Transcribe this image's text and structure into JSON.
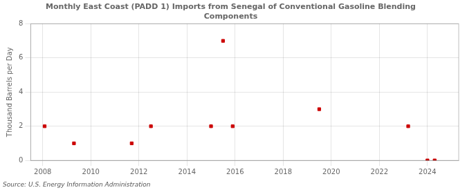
{
  "chart_data": {
    "type": "scatter",
    "title": "Monthly East Coast (PADD 1) Imports from Senegal of Conventional Gasoline Blending\nComponents",
    "y_label": "Thousand Barrels per Day",
    "annotation": "Source: U.S. Energy Information Administration",
    "x": [
      2008.08,
      2009.3,
      2011.7,
      2012.5,
      2015.0,
      2015.5,
      2015.9,
      2019.5,
      2023.2,
      2024.0,
      2024.3
    ],
    "values": [
      2.0,
      1.0,
      1.0,
      2.0,
      2.0,
      7.0,
      2.0,
      3.0,
      2.0,
      0.0,
      0.0
    ],
    "color": "#cc0000",
    "marker": "square",
    "xlim": [
      2007.5,
      2025.3
    ],
    "xticks": [
      2008,
      2010,
      2012,
      2014,
      2016,
      2018,
      2020,
      2022,
      2024
    ],
    "ylim": [
      0,
      8
    ],
    "yticks": [
      0,
      2,
      4,
      6,
      8
    ],
    "grid": true
  }
}
